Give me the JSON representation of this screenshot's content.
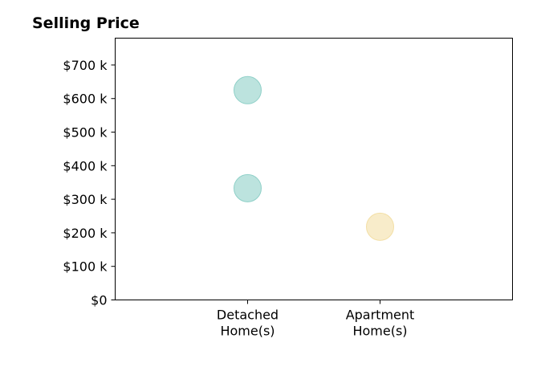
{
  "chart_data": {
    "type": "scatter",
    "title": "Selling Price",
    "xlabel": "",
    "ylabel": "",
    "categories": [
      [
        "Detached",
        "Home(s)"
      ],
      [
        "Apartment",
        "Home(s)"
      ]
    ],
    "ylim": [
      0,
      780
    ],
    "yticks": [
      0,
      100,
      200,
      300,
      400,
      500,
      600,
      700
    ],
    "ytick_labels": [
      "$0",
      "$100 k",
      "$200 k",
      "$300 k",
      "$400 k",
      "$500 k",
      "$600 k",
      "$700 k"
    ],
    "grid": false,
    "legend": "none",
    "points": [
      {
        "category": 0,
        "value": 625,
        "color": "#8fd0c8"
      },
      {
        "category": 0,
        "value": 333,
        "color": "#8fd0c8"
      },
      {
        "category": 1,
        "value": 218,
        "color": "#f3dfa6"
      }
    ]
  }
}
